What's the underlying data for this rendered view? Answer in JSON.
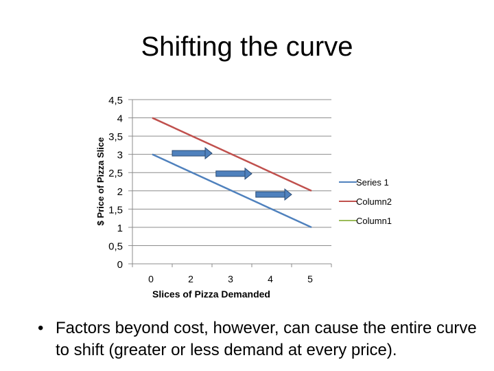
{
  "slide": {
    "title": "Shifting the curve",
    "bullet": "Factors beyond cost, however, can cause the entire curve to shift (greater or less demand at every price)."
  },
  "chart_data": {
    "type": "line",
    "title": "",
    "xlabel": "Slices of Pizza Demanded",
    "ylabel": "$ Price of  Pizza Slice",
    "categories": [
      "0",
      "2",
      "3",
      "4",
      "5"
    ],
    "y_ticks": [
      "0",
      "0,5",
      "1",
      "1,5",
      "2",
      "2,5",
      "3",
      "3,5",
      "4",
      "4,5"
    ],
    "ylim": [
      0,
      4.5
    ],
    "grid": true,
    "legend_position": "right",
    "series": [
      {
        "name": "Series 1",
        "color": "#4f81bd",
        "values": [
          3,
          null,
          null,
          null,
          1
        ]
      },
      {
        "name": "Column2",
        "color": "#c0504d",
        "values": [
          4,
          null,
          null,
          null,
          2
        ]
      },
      {
        "name": "Column1",
        "color": "#9bbb59",
        "values": [
          null,
          null,
          null,
          null,
          null
        ]
      }
    ],
    "annotations": [
      {
        "type": "arrow",
        "direction": "right",
        "color": "#4f81bd",
        "from": [
          0.5,
          3.03
        ],
        "to": [
          1.5,
          3.03
        ]
      },
      {
        "type": "arrow",
        "direction": "right",
        "color": "#4f81bd",
        "from": [
          1.6,
          2.47
        ],
        "to": [
          2.5,
          2.47
        ]
      },
      {
        "type": "arrow",
        "direction": "right",
        "color": "#4f81bd",
        "from": [
          2.6,
          1.9
        ],
        "to": [
          3.5,
          1.9
        ]
      }
    ]
  }
}
